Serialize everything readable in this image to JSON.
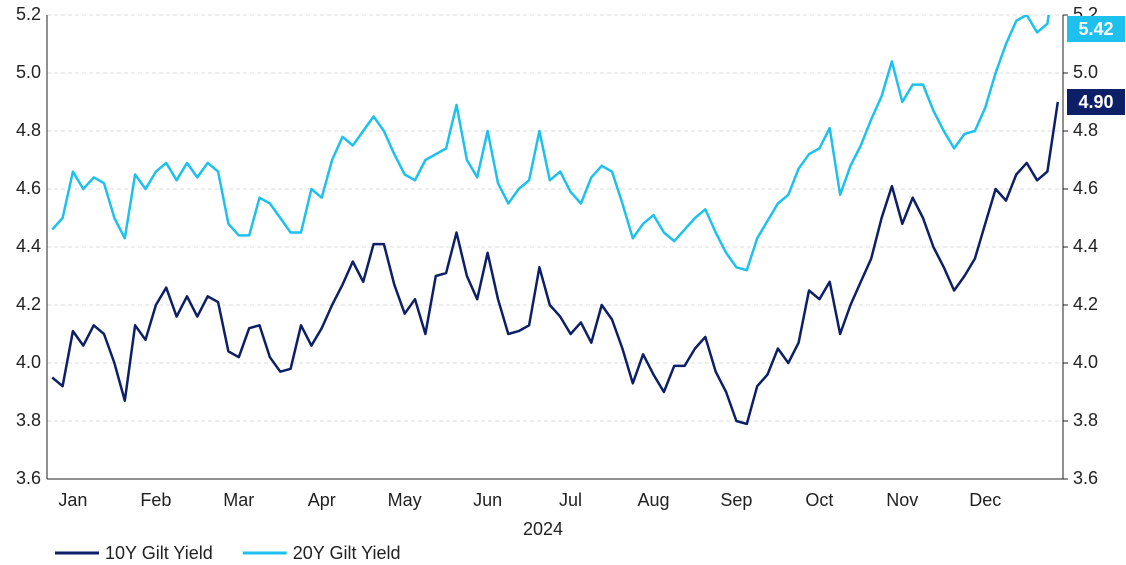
{
  "chart_data": {
    "type": "line",
    "xlabel": "2024",
    "categories": [
      null,
      null,
      null,
      null,
      "Jan",
      null,
      null,
      null,
      null,
      null,
      null,
      null,
      "Feb",
      null,
      null,
      null,
      null,
      null,
      null,
      null,
      "Mar",
      null,
      null,
      null,
      null,
      null,
      null,
      null,
      "Apr",
      null,
      null,
      null,
      null,
      null,
      null,
      null,
      "May",
      null,
      null,
      null,
      null,
      null,
      null,
      null,
      "Jun",
      null,
      null,
      null,
      null,
      null,
      null,
      null,
      "Jul",
      null,
      null,
      null,
      null,
      null,
      null,
      null,
      "Aug",
      null,
      null,
      null,
      null,
      null,
      null,
      null,
      "Sep",
      null,
      null,
      null,
      null,
      null,
      null,
      null,
      "Oct",
      null,
      null,
      null,
      null,
      null,
      null,
      null,
      "Nov",
      null,
      null,
      null,
      null,
      null,
      null,
      null,
      "Dec",
      null,
      null,
      null,
      null,
      null
    ],
    "series": [
      {
        "name": "10Y Gilt Yield",
        "color": "#0d1f66",
        "values": [
          3.95,
          3.92,
          4.11,
          4.06,
          4.13,
          4.1,
          4.0,
          3.87,
          4.13,
          4.08,
          4.2,
          4.26,
          4.16,
          4.23,
          4.16,
          4.23,
          4.21,
          4.04,
          4.02,
          4.12,
          4.13,
          4.02,
          3.97,
          3.98,
          4.13,
          4.06,
          4.12,
          4.2,
          4.27,
          4.35,
          4.28,
          4.41,
          4.41,
          4.27,
          4.17,
          4.22,
          4.1,
          4.3,
          4.31,
          4.45,
          4.3,
          4.22,
          4.38,
          4.22,
          4.1,
          4.11,
          4.13,
          4.33,
          4.2,
          4.16,
          4.1,
          4.14,
          4.07,
          4.2,
          4.15,
          4.05,
          3.93,
          4.03,
          3.96,
          3.9,
          3.99,
          3.99,
          4.05,
          4.09,
          3.97,
          3.9,
          3.8,
          3.79,
          3.92,
          3.96,
          4.05,
          4.0,
          4.07,
          4.25,
          4.22,
          4.28,
          4.1,
          4.2,
          4.28,
          4.36,
          4.5,
          4.61,
          4.48,
          4.57,
          4.5,
          4.4,
          4.33,
          4.25,
          4.3,
          4.36,
          4.48,
          4.6,
          4.56,
          4.65,
          4.69,
          4.63,
          4.66,
          4.9
        ],
        "value_labels": [
          null,
          null,
          null,
          null,
          null,
          null,
          null,
          null,
          null,
          null,
          null,
          null,
          null,
          null,
          null,
          null,
          null,
          null,
          null,
          null,
          null,
          null,
          null,
          null,
          null,
          null,
          null,
          null,
          null,
          null,
          null,
          null,
          null,
          null,
          null,
          null,
          null,
          null,
          null,
          null,
          null,
          null,
          null,
          null,
          null,
          null,
          null,
          null,
          null,
          null,
          null,
          null,
          null,
          null,
          null,
          null,
          null,
          null,
          null,
          null,
          null,
          null,
          null,
          null,
          null,
          null,
          null,
          null,
          null,
          null,
          null,
          null,
          null,
          null,
          null,
          null,
          null,
          null,
          null,
          null,
          null,
          null,
          null,
          null,
          null,
          null,
          null,
          null,
          null,
          null,
          null,
          null,
          null,
          null,
          null,
          null,
          null,
          "4.90"
        ]
      },
      {
        "name": "20Y Gilt Yield",
        "color": "#1ec0ee",
        "values": [
          4.46,
          4.5,
          4.66,
          4.6,
          4.64,
          4.62,
          4.5,
          4.43,
          4.65,
          4.6,
          4.66,
          4.69,
          4.63,
          4.69,
          4.64,
          4.69,
          4.66,
          4.48,
          4.44,
          4.44,
          4.57,
          4.55,
          4.5,
          4.45,
          4.45,
          4.6,
          4.57,
          4.7,
          4.78,
          4.75,
          4.8,
          4.85,
          4.8,
          4.72,
          4.65,
          4.63,
          4.7,
          4.72,
          4.74,
          4.89,
          4.7,
          4.64,
          4.8,
          4.62,
          4.55,
          4.6,
          4.63,
          4.8,
          4.63,
          4.66,
          4.59,
          4.55,
          4.64,
          4.68,
          4.66,
          4.55,
          4.43,
          4.48,
          4.51,
          4.45,
          4.42,
          4.46,
          4.5,
          4.53,
          4.45,
          4.38,
          4.33,
          4.32,
          4.43,
          4.49,
          4.55,
          4.58,
          4.67,
          4.72,
          4.74,
          4.81,
          4.58,
          4.68,
          4.75,
          4.84,
          4.92,
          5.04,
          4.9,
          4.96,
          4.96,
          4.87,
          4.8,
          4.74,
          4.79,
          4.8,
          4.88,
          5.0,
          5.1,
          5.18,
          5.2,
          5.14,
          5.17,
          5.42
        ]
      }
    ],
    "ylim": [
      3.6,
      5.2
    ],
    "yticks": [
      3.6,
      3.8,
      {
        "value": 4,
        "label": "4.0"
      },
      4.2,
      4.4,
      4.6,
      4.8,
      {
        "value": 5,
        "label": "5.0"
      },
      5.2
    ],
    "y2lim": [
      3.6,
      5.2
    ],
    "y2ticks": [
      3.6,
      3.8,
      {
        "value": 4,
        "label": "4.0"
      },
      4.2,
      4.4,
      4.6,
      4.8,
      {
        "value": 5,
        "label": "5.0"
      },
      5.2
    ],
    "grid": true,
    "legend": "bottom-left"
  }
}
